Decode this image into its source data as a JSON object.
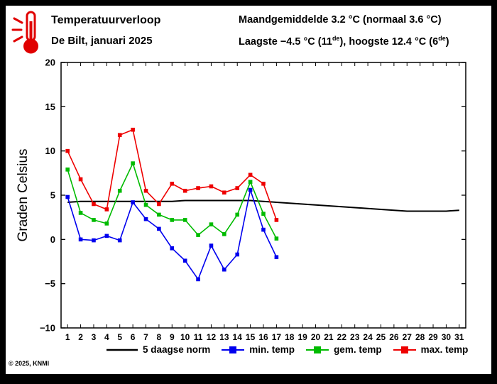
{
  "header": {
    "title": "Temperatuurverloop",
    "subtitle": "De Bilt, januari 2025",
    "stats": {
      "line1": "Maandgemiddelde 3.2 °C (normaal 3.6 °C)",
      "line2_part1": "Laagste −4.5 °C (11",
      "line2_sup1": "de",
      "line2_part2": "), hoogste 12.4 °C (6",
      "line2_sup2": "de",
      "line2_part3": ")"
    }
  },
  "footer": {
    "copyright": "© 2025, KNMI"
  },
  "chart_data": {
    "type": "line",
    "title": "",
    "xlabel": "",
    "ylabel": "Graden Celsius",
    "ylim": [
      -10,
      20
    ],
    "yticks": [
      -10,
      -5,
      0,
      5,
      10,
      15,
      20
    ],
    "xticks": [
      1,
      2,
      3,
      4,
      5,
      6,
      7,
      8,
      9,
      10,
      11,
      12,
      13,
      14,
      15,
      16,
      17,
      18,
      19,
      20,
      21,
      22,
      23,
      24,
      25,
      26,
      27,
      28,
      29,
      30,
      31
    ],
    "grid": false,
    "legend_position": "bottom",
    "series": [
      {
        "name": "5 daagse norm",
        "color": "#000000",
        "marker": false,
        "x": [
          1,
          2,
          3,
          4,
          5,
          6,
          7,
          8,
          9,
          10,
          11,
          12,
          13,
          14,
          15,
          16,
          17,
          18,
          19,
          20,
          21,
          22,
          23,
          24,
          25,
          26,
          27,
          28,
          29,
          30,
          31
        ],
        "values": [
          4.2,
          4.3,
          4.3,
          4.3,
          4.3,
          4.3,
          4.3,
          4.3,
          4.3,
          4.4,
          4.4,
          4.4,
          4.4,
          4.4,
          4.4,
          4.3,
          4.2,
          4.1,
          4.0,
          3.9,
          3.8,
          3.7,
          3.6,
          3.5,
          3.4,
          3.3,
          3.2,
          3.2,
          3.2,
          3.2,
          3.3
        ]
      },
      {
        "name": "min. temp",
        "color": "#0000ee",
        "marker": true,
        "x": [
          1,
          2,
          3,
          4,
          5,
          6,
          7,
          8,
          9,
          10,
          11,
          12,
          13,
          14,
          15,
          16,
          17
        ],
        "values": [
          4.8,
          0.0,
          -0.1,
          0.4,
          -0.1,
          4.2,
          2.3,
          1.2,
          -1.0,
          -2.4,
          -4.5,
          -0.7,
          -3.4,
          -1.7,
          5.6,
          1.1,
          -2.0
        ]
      },
      {
        "name": "gem. temp",
        "color": "#00bb00",
        "marker": true,
        "x": [
          1,
          2,
          3,
          4,
          5,
          6,
          7,
          8,
          9,
          10,
          11,
          12,
          13,
          14,
          15,
          16,
          17
        ],
        "values": [
          7.9,
          3.0,
          2.2,
          1.8,
          5.5,
          8.6,
          3.9,
          2.8,
          2.2,
          2.2,
          0.5,
          1.7,
          0.6,
          2.8,
          6.5,
          2.9,
          0.1
        ]
      },
      {
        "name": "max. temp",
        "color": "#ee0000",
        "marker": true,
        "x": [
          1,
          2,
          3,
          4,
          5,
          6,
          7,
          8,
          9,
          10,
          11,
          12,
          13,
          14,
          15,
          16,
          17
        ],
        "values": [
          10.0,
          6.8,
          4.0,
          3.4,
          11.8,
          12.4,
          5.5,
          4.0,
          6.3,
          5.5,
          5.8,
          6.0,
          5.3,
          5.8,
          7.3,
          6.3,
          2.2
        ]
      }
    ]
  }
}
